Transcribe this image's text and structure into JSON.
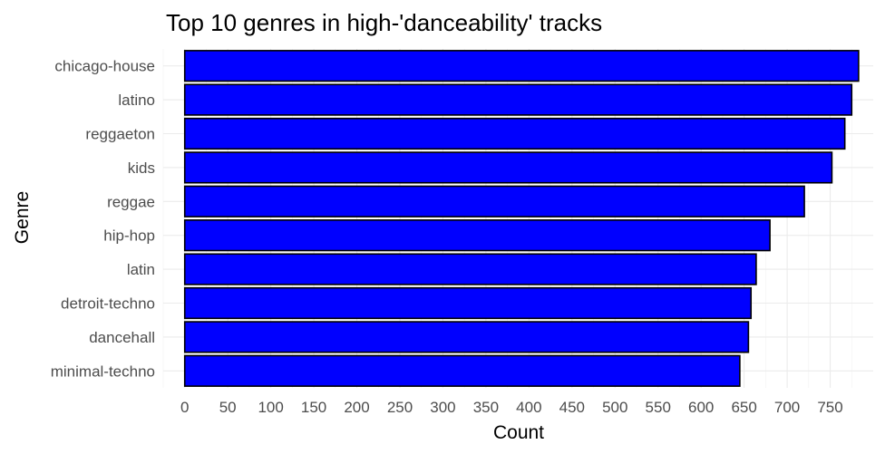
{
  "chart_data": {
    "type": "bar",
    "orientation": "horizontal",
    "title": "Top 10 genres in high-'danceability' tracks",
    "xlabel": "Count",
    "ylabel": "Genre",
    "categories": [
      "chicago-house",
      "latino",
      "reggaeton",
      "kids",
      "reggae",
      "hip-hop",
      "latin",
      "detroit-techno",
      "dancehall",
      "minimal-techno"
    ],
    "values": [
      783,
      775,
      767,
      752,
      720,
      680,
      664,
      658,
      655,
      645
    ],
    "xticks": [
      0,
      50,
      100,
      150,
      200,
      250,
      300,
      350,
      400,
      450,
      500,
      550,
      600,
      650,
      700,
      750
    ],
    "xlim": [
      -25,
      800
    ],
    "bar_fill": "#0000ff",
    "bar_outline": "#000000",
    "grid": true,
    "legend": "none"
  }
}
